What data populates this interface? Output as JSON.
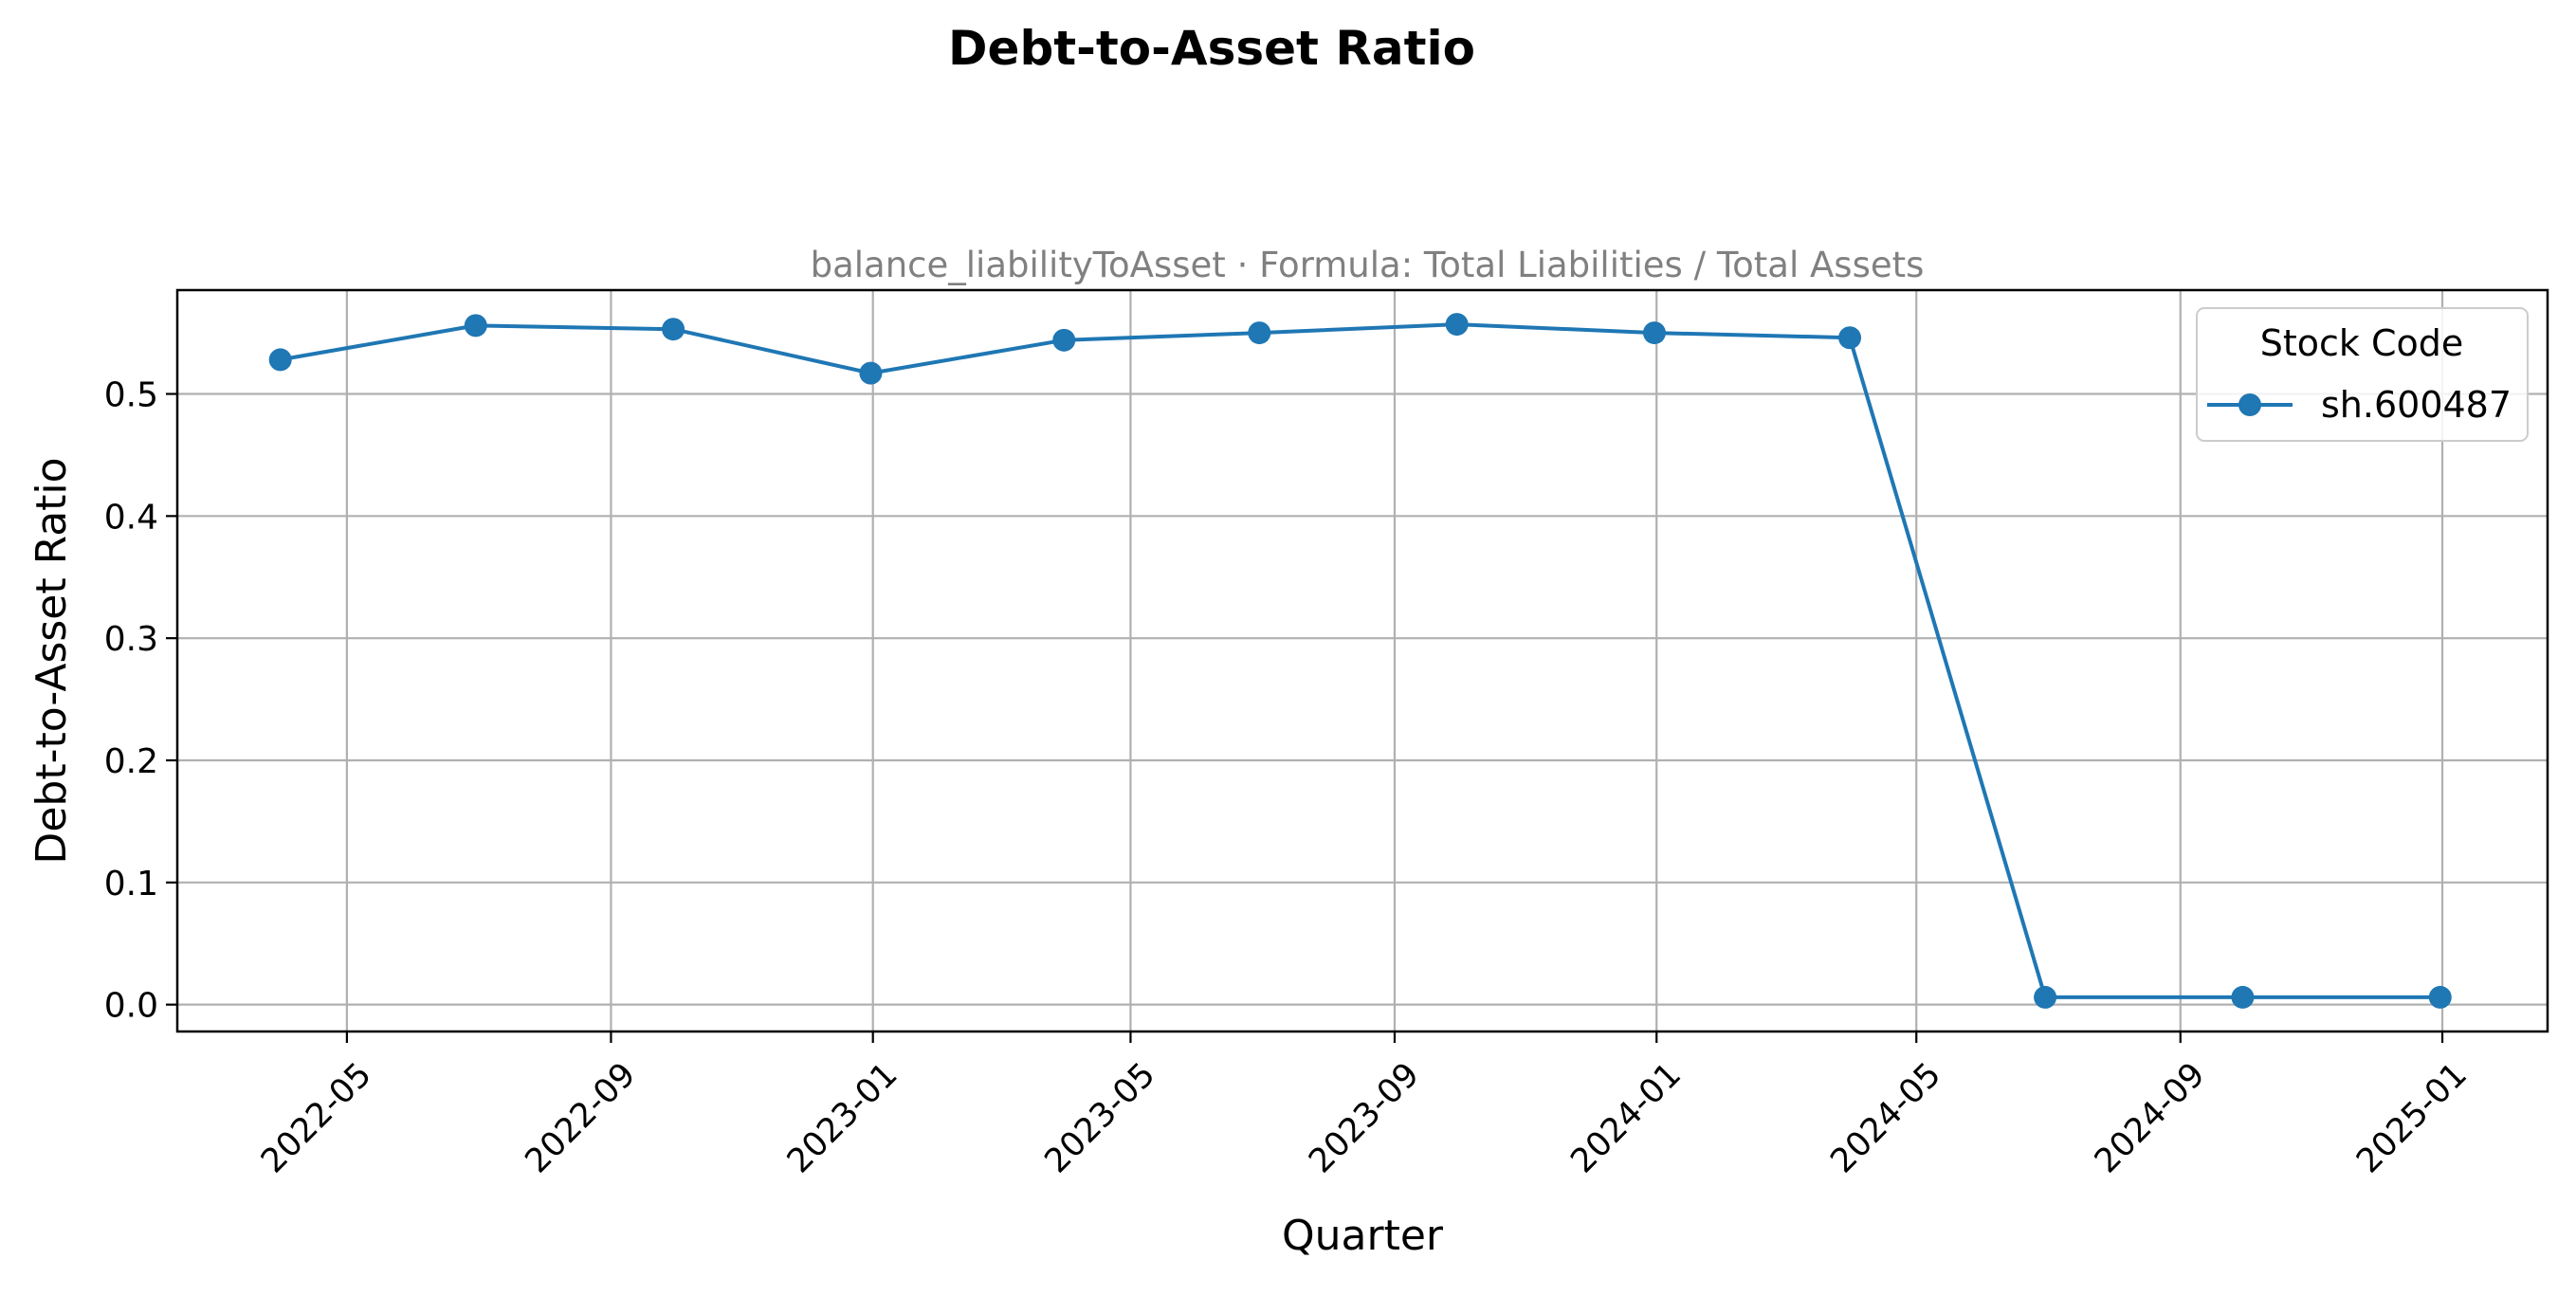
{
  "chart_data": {
    "type": "line",
    "title": "Debt-to-Asset Ratio",
    "subtitle": "balance_liabilityToAsset · Formula: Total Liabilities / Total Assets",
    "xlabel": "Quarter",
    "ylabel": "Debt-to-Asset Ratio",
    "x_axis_type": "date",
    "xlim": [
      "2022-02-11",
      "2025-02-19"
    ],
    "ylim": [
      -0.022,
      0.585
    ],
    "x_ticks": [
      "2022-05-01",
      "2022-09-01",
      "2023-01-01",
      "2023-05-01",
      "2023-09-01",
      "2024-01-01",
      "2024-05-01",
      "2024-09-01",
      "2025-01-01"
    ],
    "x_tick_labels": [
      "2022-05",
      "2022-09",
      "2023-01",
      "2023-05",
      "2023-09",
      "2024-01",
      "2024-05",
      "2024-09",
      "2025-01"
    ],
    "y_ticks": [
      0.0,
      0.1,
      0.2,
      0.3,
      0.4,
      0.5
    ],
    "y_tick_labels": [
      "0.0",
      "0.1",
      "0.2",
      "0.3",
      "0.4",
      "0.5"
    ],
    "grid": true,
    "legend": {
      "title": "Stock Code",
      "placement": "top-right"
    },
    "series": [
      {
        "name": "sh.600487",
        "color": "#1f77b4",
        "marker": "circle",
        "x": [
          "2022-03-31",
          "2022-06-30",
          "2022-09-30",
          "2022-12-31",
          "2023-03-31",
          "2023-06-30",
          "2023-09-30",
          "2023-12-31",
          "2024-03-31",
          "2024-06-30",
          "2024-09-30",
          "2024-12-31"
        ],
        "values": [
          0.528,
          0.556,
          0.553,
          0.517,
          0.544,
          0.55,
          0.557,
          0.55,
          0.546,
          0.006,
          0.006,
          0.006
        ]
      }
    ]
  }
}
